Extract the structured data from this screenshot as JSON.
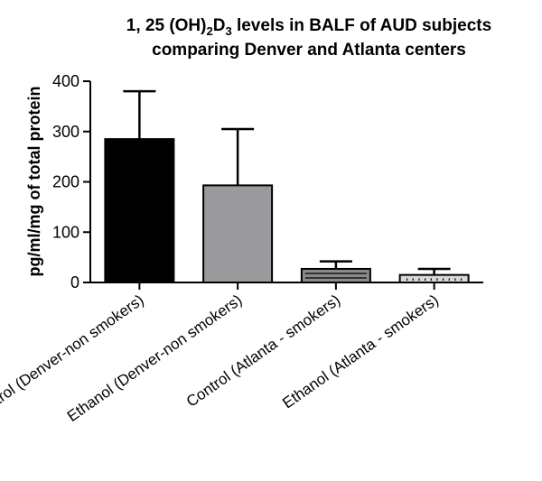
{
  "chart_data": {
    "type": "bar",
    "title_line1_prefix": "1, 25 (OH)",
    "title_sub_2": "2",
    "title_mid": "D",
    "title_sub_3": "3",
    "title_line1_suffix": " levels in BALF of AUD subjects",
    "title_line2": "comparing Denver and Atlanta centers",
    "ylabel": "pg/ml/mg of total protein",
    "ylim": [
      0,
      400
    ],
    "yticks": [
      "0",
      "100",
      "200",
      "300",
      "400"
    ],
    "categories": [
      "Control (Denver-non smokers)",
      "Ethanol (Denver-non smokers)",
      "Control (Atlanta - smokers)",
      "Ethanol (Atlanta - smokers)"
    ],
    "values": [
      285,
      193,
      27,
      15
    ],
    "errors": [
      95,
      112,
      15,
      12
    ],
    "colors": [
      "#000000",
      "#9b9b9d",
      "#8a8a8a",
      "#d9d9d9"
    ],
    "patterns": [
      "none",
      "none",
      "horizontal-lines",
      "vertical-ticks"
    ]
  }
}
